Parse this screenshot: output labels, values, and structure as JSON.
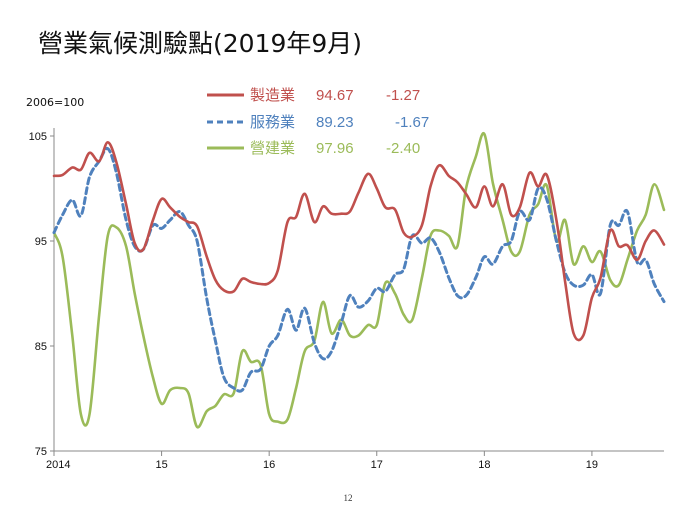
{
  "title": "營業氣候測驗點(2019年9月)",
  "page_number": "12",
  "chart_data": {
    "type": "line",
    "unit_label": "2006=100",
    "ylim": [
      75,
      105
    ],
    "yticks": [
      75,
      85,
      95,
      105
    ],
    "xlim": [
      2014.0,
      2019.67
    ],
    "xticks": [
      {
        "value": 2014,
        "label": "2014"
      },
      {
        "value": 2015,
        "label": "15"
      },
      {
        "value": 2016,
        "label": "16"
      },
      {
        "value": 2017,
        "label": "17"
      },
      {
        "value": 2018,
        "label": "18"
      },
      {
        "value": 2019,
        "label": "19"
      }
    ],
    "grid": false,
    "legend_position": "top-center",
    "series": [
      {
        "name": "製造業",
        "value": "94.67",
        "change": "-1.27",
        "color": "#c0504d",
        "dash": "solid",
        "points": [
          [
            2014.0,
            101.2
          ],
          [
            2014.08,
            101.3
          ],
          [
            2014.17,
            102.0
          ],
          [
            2014.25,
            101.8
          ],
          [
            2014.33,
            103.4
          ],
          [
            2014.42,
            102.6
          ],
          [
            2014.5,
            104.4
          ],
          [
            2014.58,
            102.5
          ],
          [
            2014.67,
            98.5
          ],
          [
            2014.75,
            94.8
          ],
          [
            2014.83,
            94.2
          ],
          [
            2014.92,
            97.0
          ],
          [
            2015.0,
            99.0
          ],
          [
            2015.08,
            98.2
          ],
          [
            2015.17,
            97.3
          ],
          [
            2015.25,
            96.8
          ],
          [
            2015.33,
            96.4
          ],
          [
            2015.42,
            93.5
          ],
          [
            2015.5,
            91.3
          ],
          [
            2015.58,
            90.3
          ],
          [
            2015.67,
            90.2
          ],
          [
            2015.75,
            91.4
          ],
          [
            2015.83,
            91.1
          ],
          [
            2015.92,
            90.9
          ],
          [
            2016.0,
            91.0
          ],
          [
            2016.08,
            92.2
          ],
          [
            2016.17,
            96.8
          ],
          [
            2016.25,
            97.3
          ],
          [
            2016.33,
            99.5
          ],
          [
            2016.42,
            96.8
          ],
          [
            2016.5,
            98.3
          ],
          [
            2016.58,
            97.6
          ],
          [
            2016.67,
            97.6
          ],
          [
            2016.75,
            97.8
          ],
          [
            2016.83,
            99.6
          ],
          [
            2016.92,
            101.4
          ],
          [
            2017.0,
            100.0
          ],
          [
            2017.08,
            98.2
          ],
          [
            2017.17,
            98.0
          ],
          [
            2017.25,
            95.8
          ],
          [
            2017.33,
            95.4
          ],
          [
            2017.42,
            96.5
          ],
          [
            2017.5,
            100.2
          ],
          [
            2017.58,
            102.2
          ],
          [
            2017.67,
            101.2
          ],
          [
            2017.75,
            100.6
          ],
          [
            2017.83,
            99.5
          ],
          [
            2017.92,
            98.2
          ],
          [
            2018.0,
            100.2
          ],
          [
            2018.08,
            98.3
          ],
          [
            2018.17,
            100.4
          ],
          [
            2018.25,
            97.5
          ],
          [
            2018.33,
            98.2
          ],
          [
            2018.42,
            101.5
          ],
          [
            2018.5,
            100.2
          ],
          [
            2018.58,
            101.3
          ],
          [
            2018.67,
            97.0
          ],
          [
            2018.75,
            91.2
          ],
          [
            2018.83,
            86.2
          ],
          [
            2018.92,
            86.0
          ],
          [
            2019.0,
            89.6
          ],
          [
            2019.08,
            91.5
          ],
          [
            2019.17,
            96.0
          ],
          [
            2019.25,
            94.5
          ],
          [
            2019.33,
            94.6
          ],
          [
            2019.42,
            93.2
          ],
          [
            2019.5,
            95.0
          ],
          [
            2019.58,
            96.0
          ],
          [
            2019.67,
            94.67
          ]
        ]
      },
      {
        "name": "服務業",
        "value": "89.23",
        "change": "-1.67",
        "color": "#4f81bd",
        "dash": "dashed",
        "points": [
          [
            2014.0,
            95.8
          ],
          [
            2014.08,
            97.5
          ],
          [
            2014.17,
            98.9
          ],
          [
            2014.25,
            97.4
          ],
          [
            2014.33,
            101.1
          ],
          [
            2014.42,
            102.6
          ],
          [
            2014.5,
            103.8
          ],
          [
            2014.58,
            101.5
          ],
          [
            2014.67,
            97.0
          ],
          [
            2014.75,
            94.5
          ],
          [
            2014.83,
            94.2
          ],
          [
            2014.92,
            96.5
          ],
          [
            2015.0,
            96.2
          ],
          [
            2015.08,
            97.0
          ],
          [
            2015.17,
            97.8
          ],
          [
            2015.25,
            96.5
          ],
          [
            2015.33,
            95.0
          ],
          [
            2015.42,
            89.5
          ],
          [
            2015.5,
            85.5
          ],
          [
            2015.58,
            82.0
          ],
          [
            2015.67,
            81.0
          ],
          [
            2015.75,
            80.8
          ],
          [
            2015.83,
            82.5
          ],
          [
            2015.92,
            82.8
          ],
          [
            2016.0,
            85.0
          ],
          [
            2016.08,
            86.0
          ],
          [
            2016.17,
            88.5
          ],
          [
            2016.25,
            86.5
          ],
          [
            2016.33,
            88.6
          ],
          [
            2016.42,
            85.3
          ],
          [
            2016.5,
            83.8
          ],
          [
            2016.58,
            84.5
          ],
          [
            2016.67,
            87.2
          ],
          [
            2016.75,
            89.8
          ],
          [
            2016.83,
            88.7
          ],
          [
            2016.92,
            89.3
          ],
          [
            2017.0,
            90.5
          ],
          [
            2017.08,
            90.2
          ],
          [
            2017.17,
            91.8
          ],
          [
            2017.25,
            92.3
          ],
          [
            2017.33,
            95.5
          ],
          [
            2017.42,
            94.8
          ],
          [
            2017.5,
            95.3
          ],
          [
            2017.58,
            94.0
          ],
          [
            2017.67,
            91.5
          ],
          [
            2017.75,
            89.8
          ],
          [
            2017.83,
            89.8
          ],
          [
            2017.92,
            91.5
          ],
          [
            2018.0,
            93.5
          ],
          [
            2018.08,
            92.8
          ],
          [
            2018.17,
            94.5
          ],
          [
            2018.25,
            95.0
          ],
          [
            2018.33,
            97.8
          ],
          [
            2018.42,
            97.0
          ],
          [
            2018.5,
            100.0
          ],
          [
            2018.58,
            99.0
          ],
          [
            2018.67,
            95.0
          ],
          [
            2018.75,
            92.0
          ],
          [
            2018.83,
            90.8
          ],
          [
            2018.92,
            90.8
          ],
          [
            2019.0,
            91.8
          ],
          [
            2019.08,
            90.0
          ],
          [
            2019.17,
            96.5
          ],
          [
            2019.25,
            96.5
          ],
          [
            2019.33,
            97.8
          ],
          [
            2019.42,
            93.0
          ],
          [
            2019.5,
            93.2
          ],
          [
            2019.58,
            90.9
          ],
          [
            2019.67,
            89.23
          ]
        ]
      },
      {
        "name": "營建業",
        "value": "97.96",
        "change": "-2.40",
        "color": "#9bbb59",
        "dash": "solid",
        "points": [
          [
            2014.0,
            95.8
          ],
          [
            2014.08,
            93.5
          ],
          [
            2014.17,
            86.0
          ],
          [
            2014.25,
            78.5
          ],
          [
            2014.33,
            78.5
          ],
          [
            2014.42,
            88.0
          ],
          [
            2014.5,
            95.5
          ],
          [
            2014.58,
            96.3
          ],
          [
            2014.67,
            94.5
          ],
          [
            2014.75,
            90.0
          ],
          [
            2014.83,
            86.0
          ],
          [
            2014.92,
            82.0
          ],
          [
            2015.0,
            79.5
          ],
          [
            2015.08,
            80.8
          ],
          [
            2015.17,
            81.0
          ],
          [
            2015.25,
            80.5
          ],
          [
            2015.33,
            77.3
          ],
          [
            2015.42,
            78.8
          ],
          [
            2015.5,
            79.3
          ],
          [
            2015.58,
            80.4
          ],
          [
            2015.67,
            80.5
          ],
          [
            2015.75,
            84.5
          ],
          [
            2015.83,
            83.5
          ],
          [
            2015.92,
            83.2
          ],
          [
            2016.0,
            78.5
          ],
          [
            2016.08,
            77.8
          ],
          [
            2016.17,
            78.0
          ],
          [
            2016.25,
            81.0
          ],
          [
            2016.33,
            84.5
          ],
          [
            2016.42,
            85.5
          ],
          [
            2016.5,
            89.2
          ],
          [
            2016.58,
            86.2
          ],
          [
            2016.67,
            87.5
          ],
          [
            2016.75,
            86.0
          ],
          [
            2016.83,
            86.0
          ],
          [
            2016.92,
            87.0
          ],
          [
            2017.0,
            87.0
          ],
          [
            2017.08,
            91.0
          ],
          [
            2017.17,
            90.0
          ],
          [
            2017.25,
            88.0
          ],
          [
            2017.33,
            87.5
          ],
          [
            2017.42,
            91.5
          ],
          [
            2017.5,
            95.5
          ],
          [
            2017.58,
            96.0
          ],
          [
            2017.67,
            95.5
          ],
          [
            2017.75,
            94.5
          ],
          [
            2017.83,
            100.0
          ],
          [
            2017.92,
            103.0
          ],
          [
            2018.0,
            105.2
          ],
          [
            2018.08,
            100.5
          ],
          [
            2018.17,
            97.0
          ],
          [
            2018.25,
            94.0
          ],
          [
            2018.33,
            94.0
          ],
          [
            2018.42,
            97.5
          ],
          [
            2018.5,
            98.5
          ],
          [
            2018.58,
            100.3
          ],
          [
            2018.67,
            95.0
          ],
          [
            2018.75,
            97.0
          ],
          [
            2018.83,
            92.8
          ],
          [
            2018.92,
            94.5
          ],
          [
            2019.0,
            93.0
          ],
          [
            2019.08,
            94.0
          ],
          [
            2019.17,
            91.3
          ],
          [
            2019.25,
            90.8
          ],
          [
            2019.33,
            93.2
          ],
          [
            2019.42,
            96.0
          ],
          [
            2019.5,
            97.5
          ],
          [
            2019.58,
            100.4
          ],
          [
            2019.67,
            97.96
          ]
        ]
      }
    ]
  }
}
